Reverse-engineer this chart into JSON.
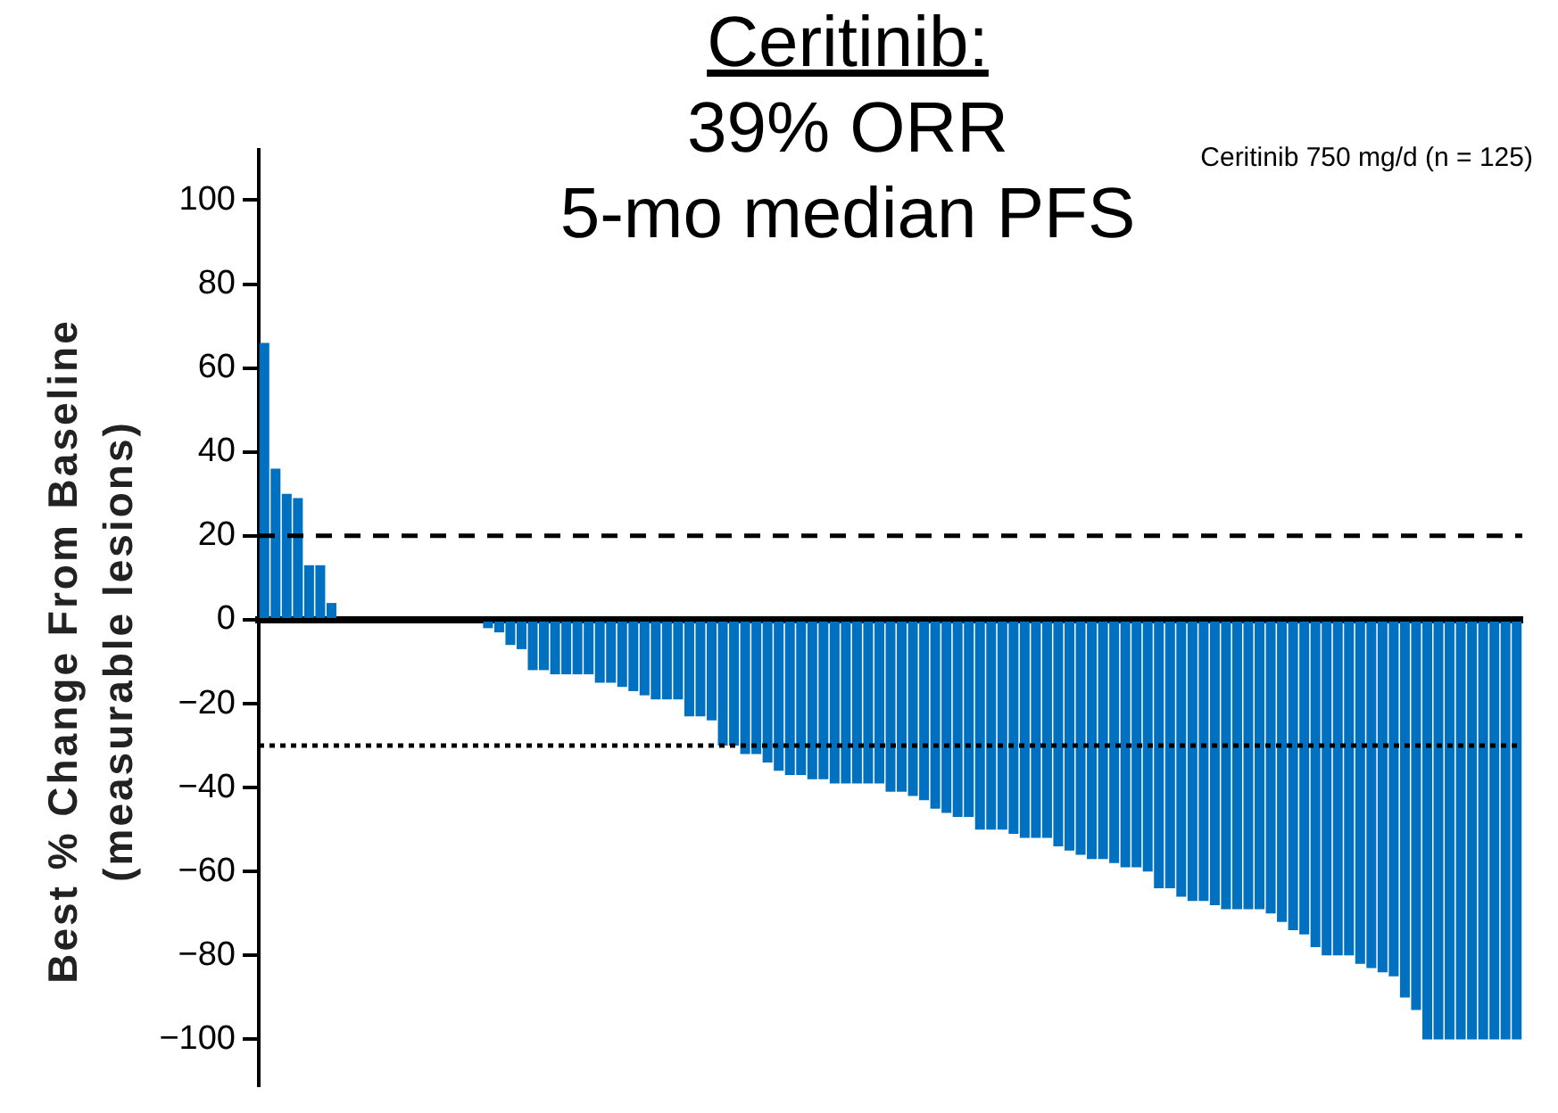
{
  "chart_data": {
    "type": "bar",
    "title": "Ceritinib:\n39% ORR\n5-mo median PFS",
    "ylabel": "Best % Change From Baseline\n(measurable lesions)",
    "annotations": [
      "Ceritinib 750 mg/d (n = 125)"
    ],
    "categories": [
      null,
      null,
      null,
      null,
      null,
      null,
      null,
      null,
      null,
      null,
      null,
      null,
      null,
      null,
      null,
      null,
      null,
      null,
      null,
      null,
      null,
      null,
      null,
      null,
      null,
      null,
      null,
      null,
      null,
      null,
      null,
      null,
      null,
      null,
      null,
      null,
      null,
      null,
      null,
      null,
      null,
      null,
      null,
      null,
      null,
      null,
      null,
      null,
      null,
      null,
      null,
      null,
      null,
      null,
      null,
      null,
      null,
      null,
      null,
      null,
      null,
      null,
      null,
      null,
      null,
      null,
      null,
      null,
      null,
      null,
      null,
      null,
      null,
      null,
      null,
      null,
      null,
      null,
      null,
      null,
      null,
      null,
      null,
      null,
      null,
      null,
      null,
      null,
      null,
      null,
      null,
      null,
      null,
      null,
      null,
      null,
      null,
      null,
      null,
      null,
      null,
      null,
      null,
      null,
      null,
      null,
      null,
      null,
      null,
      null,
      null,
      null,
      null
    ],
    "values": [
      66,
      36,
      30,
      29,
      13,
      13,
      4,
      0,
      0,
      0,
      0,
      0,
      0,
      0,
      0,
      0,
      0,
      0,
      0,
      0,
      -2,
      -3,
      -6,
      -7,
      -12,
      -12,
      -13,
      -13,
      -13,
      -13,
      -15,
      -15,
      -16,
      -17,
      -18,
      -19,
      -19,
      -19,
      -23,
      -23,
      -24,
      -30,
      -30,
      -32,
      -32,
      -34,
      -36,
      -37,
      -37,
      -38,
      -38,
      -39,
      -39,
      -39,
      -39,
      -39,
      -41,
      -41,
      -42,
      -43,
      -45,
      -46,
      -47,
      -47,
      -50,
      -50,
      -50,
      -51,
      -52,
      -52,
      -52,
      -54,
      -55,
      -56,
      -57,
      -57,
      -58,
      -59,
      -59,
      -60,
      -64,
      -64,
      -66,
      -67,
      -67,
      -68,
      -69,
      -69,
      -69,
      -69,
      -70,
      -72,
      -74,
      -75,
      -78,
      -80,
      -80,
      -80,
      -82,
      -83,
      -84,
      -85,
      -90,
      -93,
      -100,
      -100,
      -100,
      -100,
      -100,
      -100,
      -100,
      -100,
      -100
    ],
    "color": "#0070c0",
    "ylim": [
      -111,
      112
    ],
    "yticks": [
      -100,
      -80,
      -60,
      -40,
      -20,
      0,
      20,
      40,
      60,
      80,
      100
    ],
    "grid": false,
    "legend": false,
    "ref_lines": [
      {
        "axis": "y",
        "value": 20,
        "line_style": "dashed",
        "color": "#000000"
      },
      {
        "axis": "y",
        "value": -30,
        "line_style": "dotted",
        "color": "#000000"
      }
    ]
  }
}
